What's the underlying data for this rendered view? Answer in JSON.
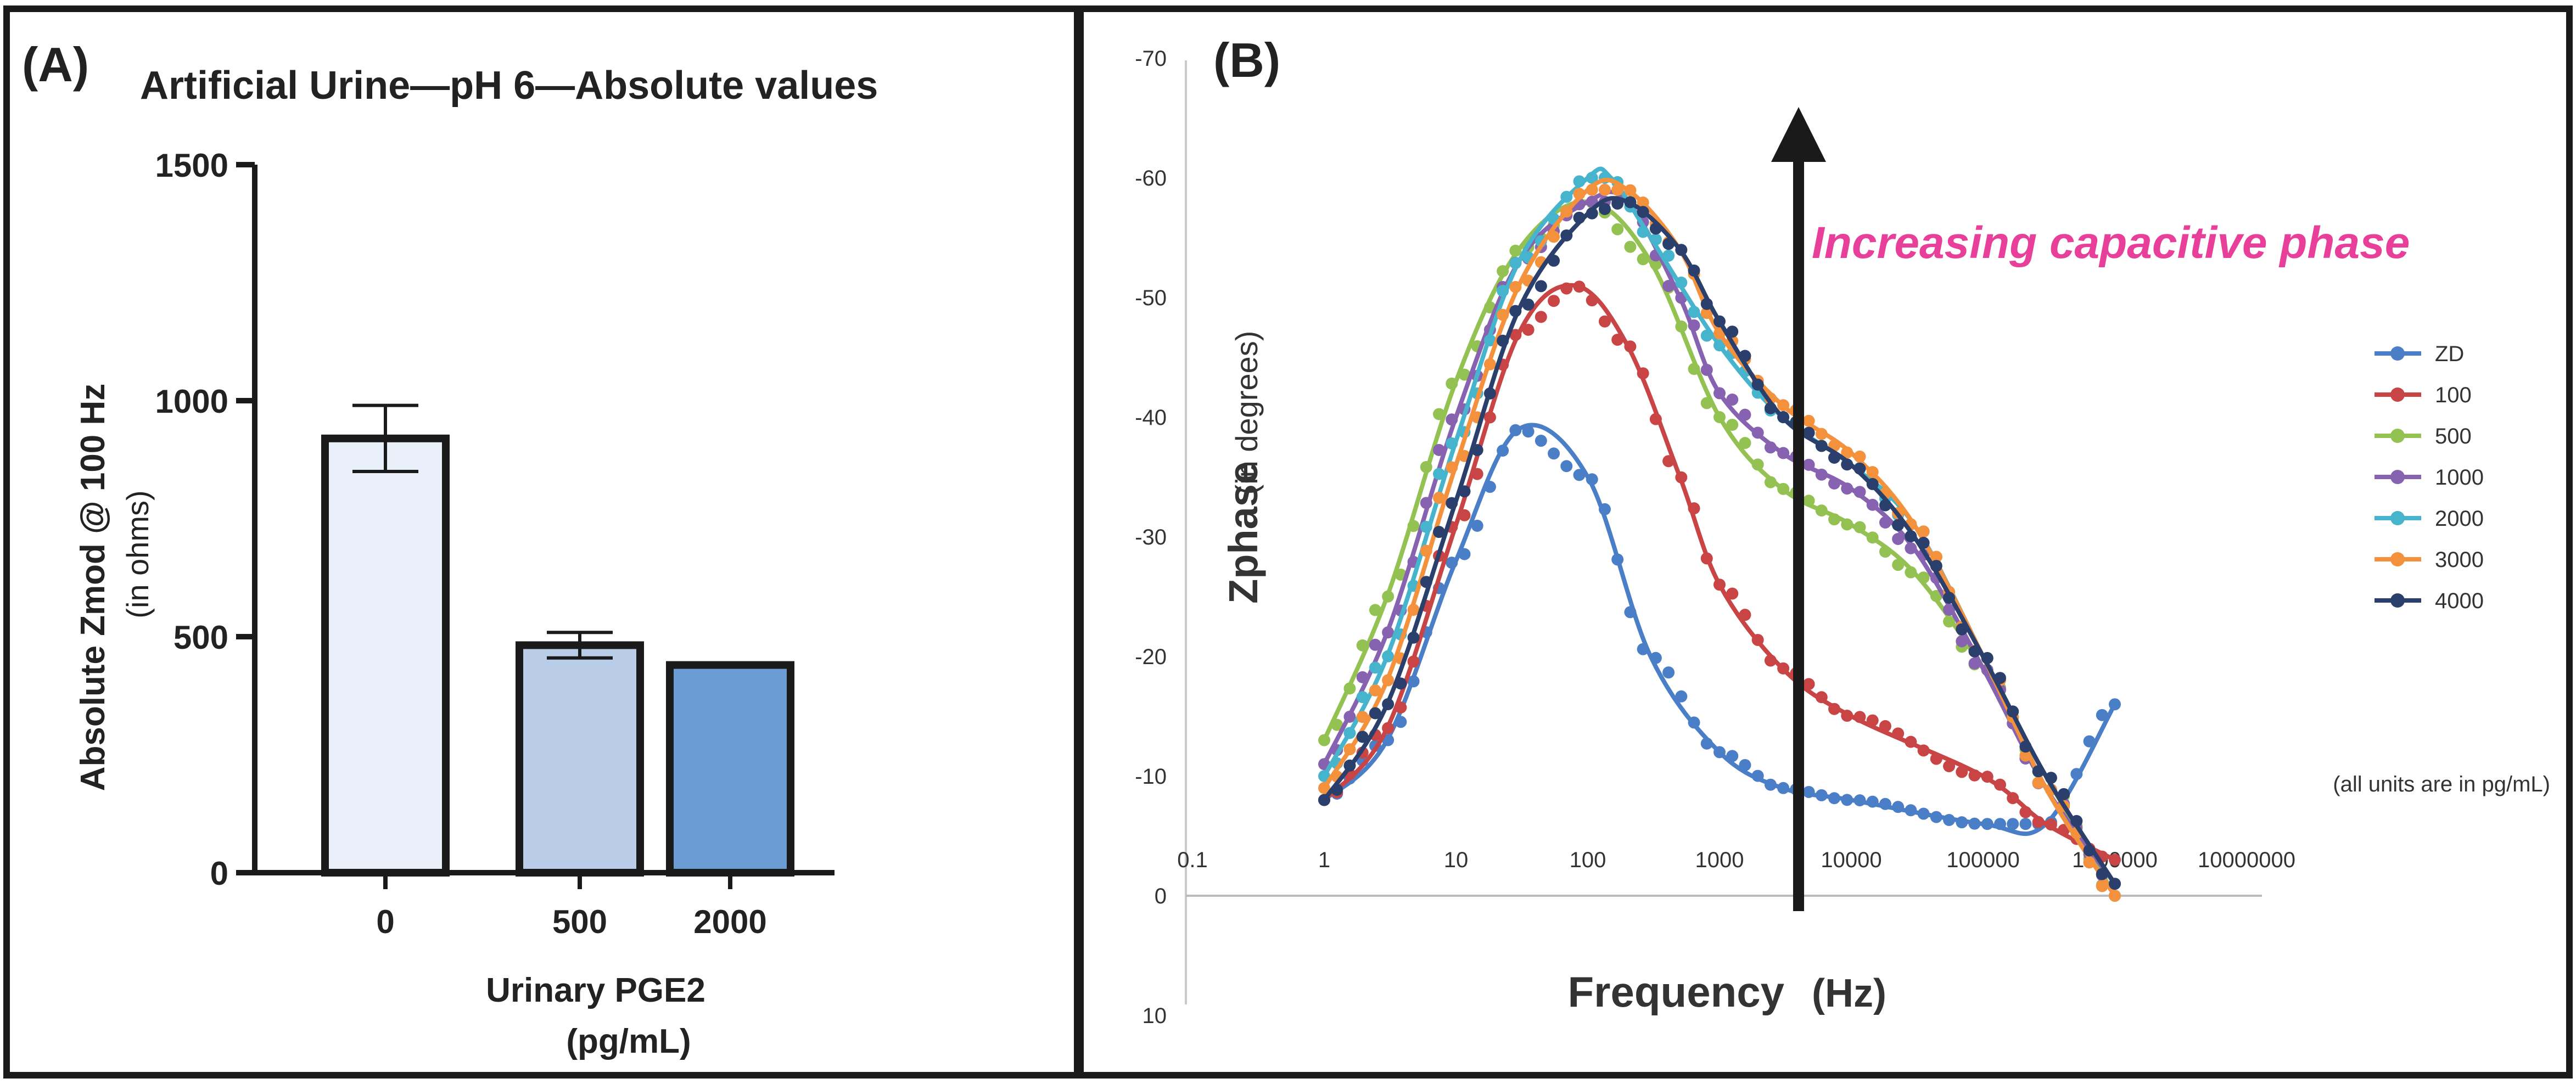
{
  "chart_data": [
    {
      "panel_label": "(A)",
      "type": "bar",
      "title": "Artificial Urine—pH 6—Absolute values",
      "ylabel_main": "Absolute Zmod @ 100 Hz",
      "ylabel_sub": "(in ohms)",
      "xlabel_main": "Urinary PGE2",
      "xlabel_sub": "(pg/mL)",
      "ylim": [
        0,
        1500
      ],
      "yticks": [
        0,
        500,
        1000,
        1500
      ],
      "categories": [
        "0",
        "500",
        "2000"
      ],
      "values": [
        920,
        482,
        440
      ],
      "error": [
        70,
        27,
        4
      ],
      "colors": [
        "#eaf0fa",
        "#b9cde9",
        "#6b9dd4"
      ],
      "edge_color": "#1a1a1a"
    },
    {
      "panel_label": "(B)",
      "type": "line",
      "xscale": "log",
      "xlabel_main": "Frequency",
      "xlabel_unit": "(Hz)",
      "ylabel_main": "Zphase",
      "ylabel_sub": "(in degrees)",
      "ylim": [
        10,
        -70
      ],
      "yticks": [
        "-70",
        "-60",
        "-50",
        "-40",
        "-30",
        "-20",
        "-10",
        "0",
        "10"
      ],
      "xticks": [
        "0.1",
        "1",
        "10",
        "100",
        "1000",
        "10000",
        "100000",
        "1000000",
        "10000000"
      ],
      "annotation": "Increasing capacitive phase",
      "annotation_color": "#e8409a",
      "units_note": "(all units are in pg/mL)",
      "series": [
        {
          "name": "ZD",
          "color": "#4a7fc8",
          "x": [
            1,
            3,
            10,
            30,
            100,
            300,
            1000,
            3000,
            10000,
            100000,
            300000,
            1000000
          ],
          "y": [
            -8,
            -13,
            -28,
            -39,
            -35,
            -20,
            -12,
            -9,
            -8,
            -6,
            -6,
            -16
          ]
        },
        {
          "name": "100",
          "color": "#c94444",
          "x": [
            1,
            3,
            10,
            30,
            80,
            200,
            500,
            1000,
            3000,
            10000,
            100000,
            300000,
            1000000
          ],
          "y": [
            -8,
            -14,
            -31,
            -47,
            -51,
            -46,
            -35,
            -26,
            -19,
            -15,
            -10,
            -6,
            -3
          ]
        },
        {
          "name": "500",
          "color": "#93c152",
          "x": [
            1,
            3,
            10,
            30,
            100,
            300,
            1000,
            3000,
            10000,
            30000,
            100000,
            300000,
            1000000
          ],
          "y": [
            -13,
            -25,
            -43,
            -54,
            -58,
            -53,
            -40,
            -34,
            -31,
            -27,
            -19,
            -10,
            0
          ]
        },
        {
          "name": "1000",
          "color": "#8662b0",
          "x": [
            1,
            3,
            10,
            30,
            100,
            200,
            500,
            1000,
            3000,
            10000,
            30000,
            100000,
            300000,
            1000000
          ],
          "y": [
            -11,
            -22,
            -40,
            -53,
            -58,
            -58,
            -50,
            -42,
            -37,
            -34,
            -29,
            -19,
            -9,
            -1
          ]
        },
        {
          "name": "2000",
          "color": "#46b4cc",
          "x": [
            1,
            3,
            10,
            30,
            100,
            150,
            300,
            1000,
            3000,
            10000,
            30000,
            100000,
            300000,
            1000000
          ],
          "y": [
            -10,
            -20,
            -38,
            -53,
            -60,
            -60,
            -55,
            -46,
            -40,
            -36,
            -31,
            -20,
            -9,
            0
          ]
        },
        {
          "name": "3000",
          "color": "#f4913c",
          "x": [
            1,
            3,
            10,
            30,
            100,
            200,
            500,
            1000,
            3000,
            10000,
            30000,
            100000,
            300000,
            1000000
          ],
          "y": [
            -9,
            -18,
            -36,
            -51,
            -59,
            -59,
            -54,
            -47,
            -41,
            -37,
            -31,
            -20,
            -9,
            0
          ]
        },
        {
          "name": "4000",
          "color": "#2b3f6c",
          "x": [
            1,
            3,
            10,
            30,
            100,
            200,
            500,
            1000,
            3000,
            10000,
            30000,
            100000,
            300000,
            1000000
          ],
          "y": [
            -8,
            -16,
            -33,
            -49,
            -57,
            -58,
            -54,
            -48,
            -40,
            -36,
            -30,
            -20,
            -10,
            -1
          ]
        }
      ]
    }
  ]
}
